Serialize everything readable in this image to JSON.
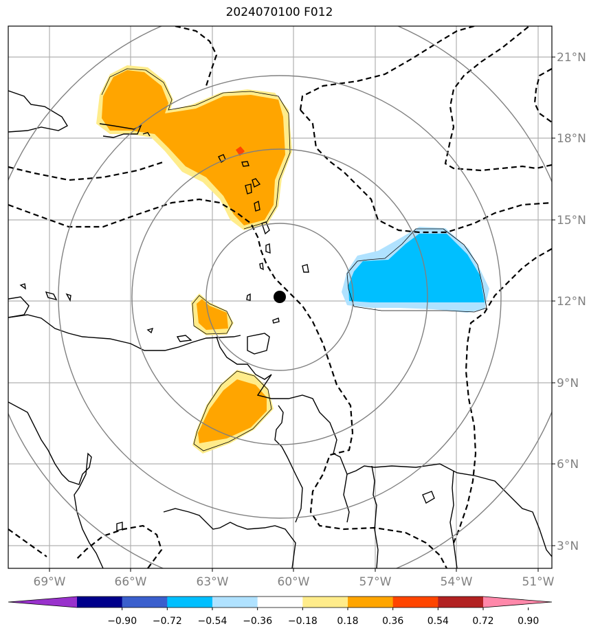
{
  "title": "2024070100 F012",
  "lon_labels": [
    "69°W",
    "66°W",
    "63°W",
    "60°W",
    "57°W",
    "54°W",
    "51°W"
  ],
  "lat_labels": [
    "21°N",
    "18°N",
    "15°N",
    "12°N",
    "9°N",
    "6°N",
    "3°N"
  ],
  "colorbar": {
    "colors": [
      "#9932cc",
      "#00008b",
      "#3a5fcd",
      "#00bfff",
      "#b0e2ff",
      "#ffffff",
      "#ffec8b",
      "#ffa500",
      "#ff4500",
      "#b22222",
      "#ff88aa"
    ],
    "tick_labels": [
      "−0.90",
      "−0.72",
      "−0.54",
      "−0.36",
      "−0.18",
      "0.18",
      "0.36",
      "0.54",
      "0.72",
      "0.90"
    ]
  },
  "center_marker": {
    "lon": -60.7,
    "lat": 12.2
  },
  "range_rings_count": 4
}
